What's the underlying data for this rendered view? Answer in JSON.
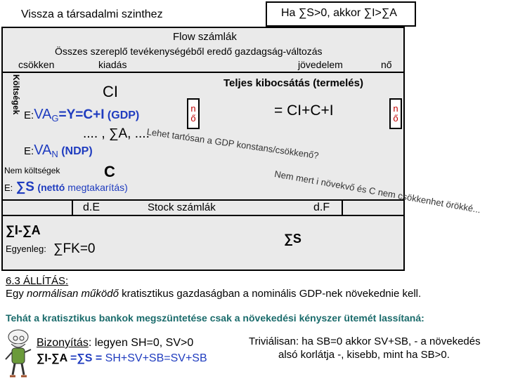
{
  "header": {
    "left_link": "Vissza a társadalmi szinthez",
    "right_box": "Ha ∑S>0, akkor ∑I>∑A"
  },
  "flow": {
    "title": "Flow számlák",
    "subtitle": "Összes szereplő tevékenységéből eredő gazdagság-változás",
    "decrease": "csökken",
    "expense": "kiadás",
    "income": "jövedelem",
    "increase": "nő",
    "costs_vertical": "Költségek",
    "total_output": "Teljes kibocsátás (termelés)",
    "ci_left": "CI",
    "ci_right": "= CI+C+I",
    "grows_box": "n\nő",
    "e_prefix1": "E:",
    "vag_a": "VA",
    "vag_sub": "G",
    "vag_b": "=Y=C+I",
    "gdp_label": " (GDP)",
    "sum_line": ".... , ∑A, ....",
    "e_prefix2": "E:",
    "van_a": "VA",
    "van_sub": "N",
    "ndp_label": " (NDP)",
    "noncosts": "Nem költségek",
    "c_label": "C",
    "e_prefix3": "E:",
    "sum_s": "∑S",
    "net_saving_open": "(nettó ",
    "net_saving_rest": "megtakarítás)",
    "diagonal1": "Lehet tartósan a GDP konstans/csökkenő?",
    "diagonal2": "Nem mert i növekvő és C nem csökkenhet örökké..."
  },
  "stock": {
    "title": "Stock számlák",
    "de": "d.E",
    "df": "d.F",
    "sum_i_a": "∑I-∑A",
    "balance_label": "Egyenleg:",
    "sum_fk": "∑FK=0",
    "sum_s": "∑S"
  },
  "statement": {
    "heading": "6.3 ÁLLÍTÁS:",
    "text_a": "Egy ",
    "text_em": "normálisan működő",
    "text_b": " kratisztikus gazdaságban a nominális GDP-nek növekednie kell.",
    "conclusion": "Tehát a kratisztikus bankok megszüntetése csak a növekedési kényszer ütemét lassítaná:"
  },
  "proof": {
    "label": "Bizonyítás",
    "text1": ": legyen SH=0, SV>0",
    "line2_a": "∑I-∑A",
    "line2_b": " =∑S = ",
    "line2_c": "SH+SV+SB=SV+SB",
    "trivial_a": "Triviálisan: ha SB=0 akkor SV+SB, - a növekedés",
    "trivial_b": "alsó korlátja -, kisebb, mint ha SB>0."
  }
}
